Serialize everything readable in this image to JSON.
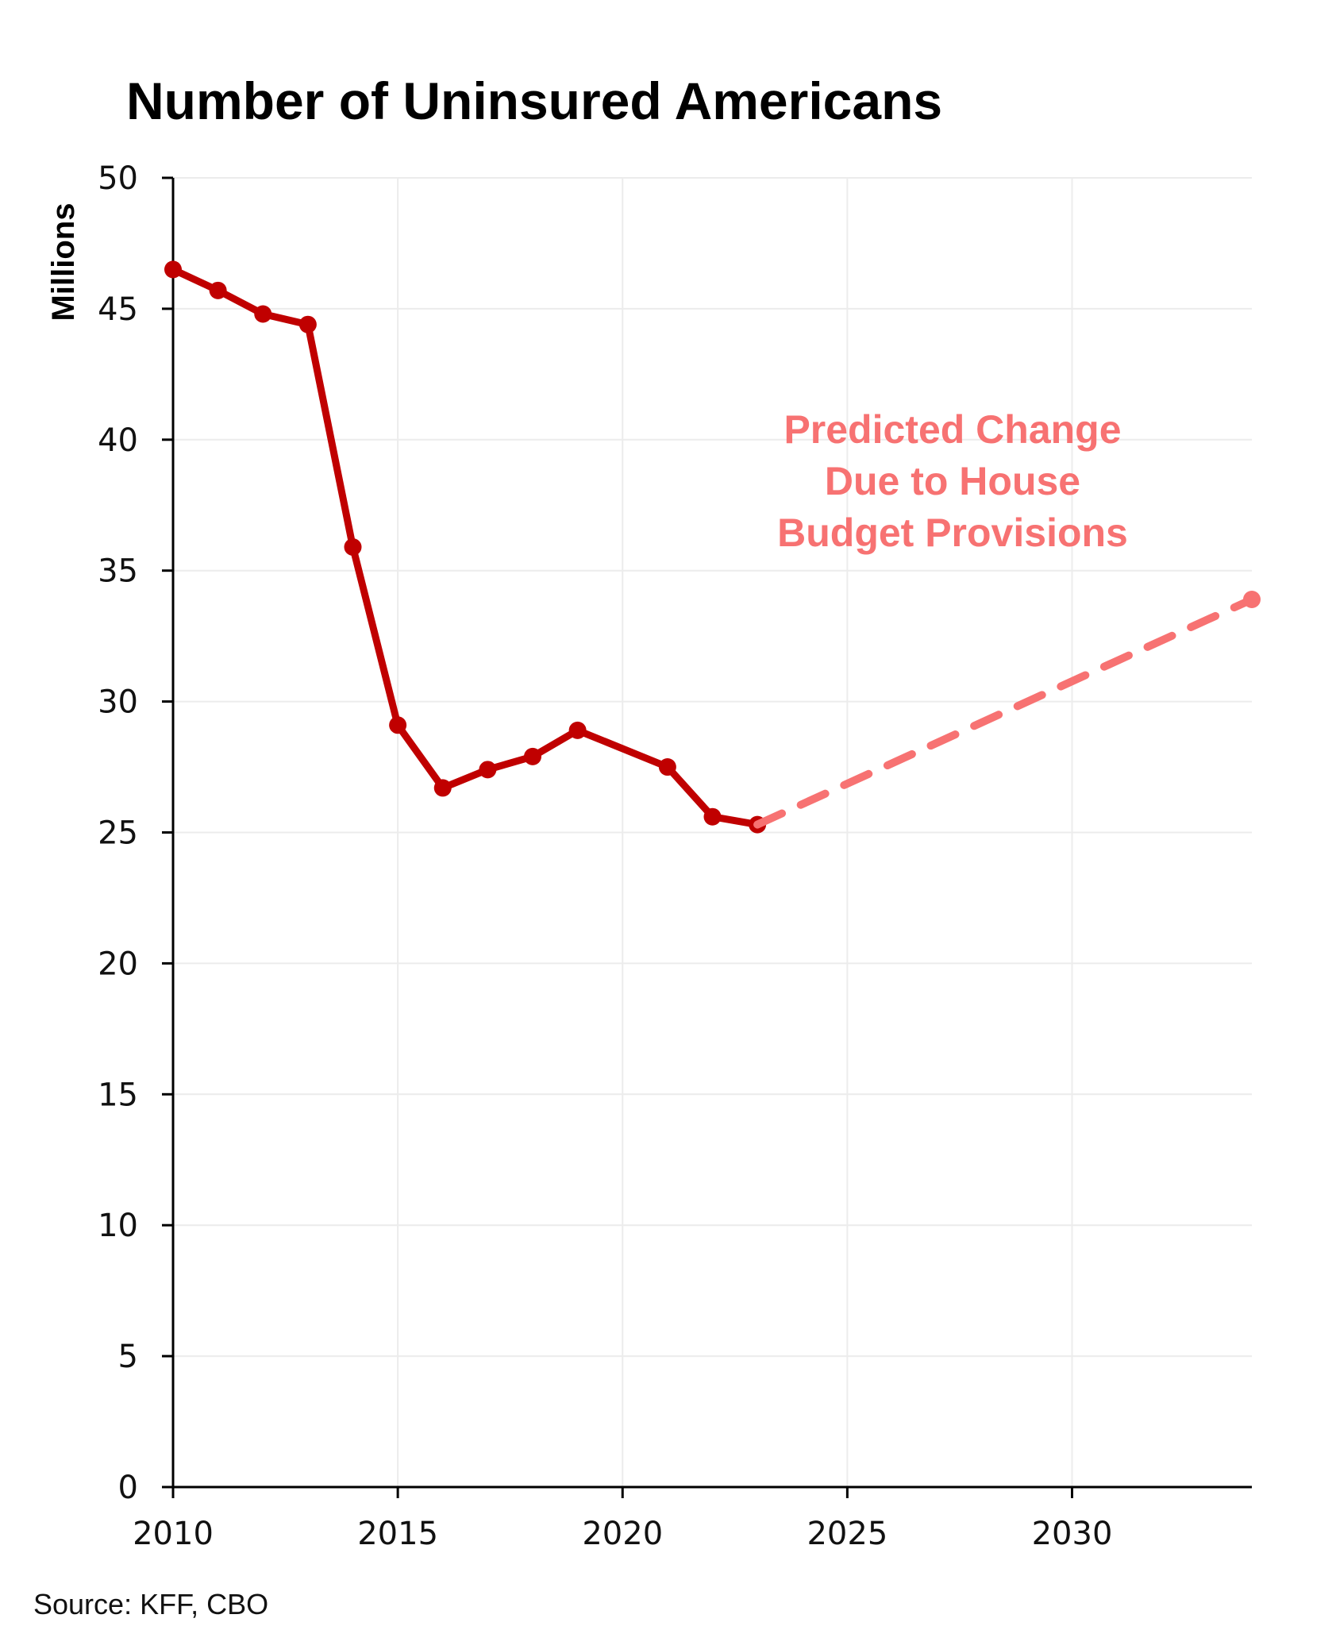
{
  "chart_data": {
    "type": "line",
    "title": "Number of Uninsured Americans",
    "xlabel": "",
    "ylabel": "Millions",
    "xlim": [
      2010,
      2034
    ],
    "ylim": [
      0,
      50
    ],
    "xticks": [
      2010,
      2015,
      2020,
      2025,
      2030
    ],
    "yticks": [
      0,
      5,
      10,
      15,
      20,
      25,
      30,
      35,
      40,
      45,
      50
    ],
    "grid": true,
    "series": [
      {
        "style": "solid",
        "color": "#c00000",
        "x": [
          2010,
          2011,
          2012,
          2013,
          2014,
          2015,
          2016,
          2017,
          2018,
          2019,
          2021,
          2022,
          2023
        ],
        "y": [
          46.5,
          45.7,
          44.8,
          44.4,
          35.9,
          29.1,
          26.7,
          27.4,
          27.9,
          28.9,
          27.5,
          25.6,
          25.3
        ]
      },
      {
        "style": "dashed",
        "color": "#f77272",
        "x": [
          2023,
          2034
        ],
        "y": [
          25.3,
          33.9
        ]
      }
    ],
    "annotation": {
      "lines": [
        "Predicted Change",
        "Due to House",
        "Budget Provisions"
      ],
      "color": "#f77272"
    },
    "source": "Source: KFF, CBO"
  }
}
